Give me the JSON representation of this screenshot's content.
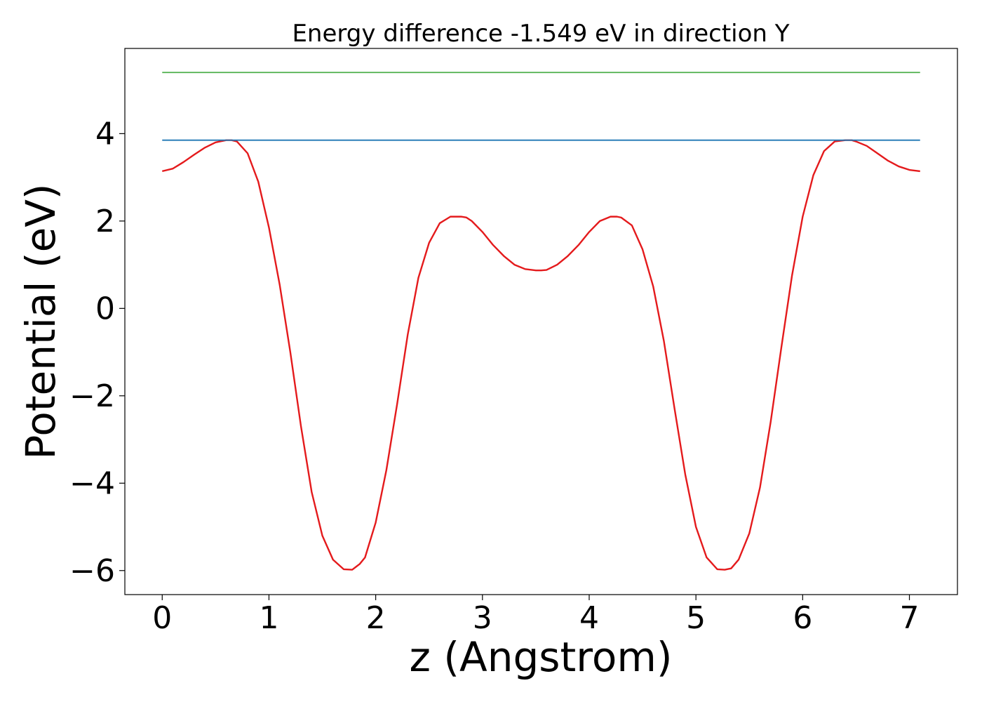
{
  "chart_data": {
    "type": "line",
    "title": "Energy difference -1.549 eV in direction Y",
    "xlabel": "z (Angstrom)",
    "ylabel": "Potential (eV)",
    "xlim": [
      -0.35,
      7.45
    ],
    "ylim": [
      -6.55,
      5.95
    ],
    "xticks": [
      0,
      1,
      2,
      3,
      4,
      5,
      6,
      7
    ],
    "xtick_labels": [
      "0",
      "1",
      "2",
      "3",
      "4",
      "5",
      "6",
      "7"
    ],
    "yticks": [
      -6,
      -4,
      -2,
      0,
      2,
      4
    ],
    "ytick_labels": [
      "−6",
      "−4",
      "−2",
      "0",
      "2",
      "4"
    ],
    "grid": false,
    "series": [
      {
        "color": "#e41a1c",
        "x": [
          0.0,
          0.1,
          0.2,
          0.3,
          0.4,
          0.5,
          0.6,
          0.65,
          0.7,
          0.8,
          0.9,
          1.0,
          1.1,
          1.2,
          1.3,
          1.4,
          1.5,
          1.6,
          1.7,
          1.78,
          1.85,
          1.9,
          2.0,
          2.1,
          2.2,
          2.3,
          2.4,
          2.5,
          2.6,
          2.7,
          2.8,
          2.85,
          2.9,
          3.0,
          3.1,
          3.2,
          3.3,
          3.4,
          3.5,
          3.55,
          3.6,
          3.7,
          3.8,
          3.9,
          4.0,
          4.1,
          4.2,
          4.26,
          4.3,
          4.4,
          4.5,
          4.6,
          4.7,
          4.8,
          4.9,
          5.0,
          5.1,
          5.2,
          5.27,
          5.33,
          5.4,
          5.5,
          5.6,
          5.7,
          5.8,
          5.9,
          6.0,
          6.1,
          6.2,
          6.3,
          6.4,
          6.46,
          6.5,
          6.6,
          6.7,
          6.8,
          6.9,
          7.0,
          7.1
        ],
        "y": [
          3.14,
          3.2,
          3.35,
          3.52,
          3.68,
          3.8,
          3.85,
          3.85,
          3.82,
          3.55,
          2.9,
          1.85,
          0.55,
          -1.0,
          -2.7,
          -4.2,
          -5.2,
          -5.75,
          -5.97,
          -5.98,
          -5.85,
          -5.7,
          -4.9,
          -3.7,
          -2.2,
          -0.6,
          0.7,
          1.5,
          1.95,
          2.1,
          2.1,
          2.08,
          2.0,
          1.75,
          1.45,
          1.2,
          1.0,
          0.9,
          0.87,
          0.87,
          0.88,
          1.0,
          1.2,
          1.45,
          1.75,
          2.0,
          2.1,
          2.1,
          2.08,
          1.9,
          1.35,
          0.5,
          -0.75,
          -2.3,
          -3.8,
          -5.0,
          -5.7,
          -5.97,
          -5.98,
          -5.95,
          -5.75,
          -5.15,
          -4.1,
          -2.6,
          -0.9,
          0.75,
          2.1,
          3.05,
          3.6,
          3.82,
          3.85,
          3.85,
          3.82,
          3.72,
          3.55,
          3.38,
          3.25,
          3.17,
          3.14
        ]
      },
      {
        "color": "#1f77b4",
        "x": [
          0.0,
          7.1
        ],
        "y": [
          3.85,
          3.85
        ]
      },
      {
        "color": "#4daf4a",
        "x": [
          0.0,
          7.1
        ],
        "y": [
          5.4,
          5.4
        ]
      }
    ]
  }
}
